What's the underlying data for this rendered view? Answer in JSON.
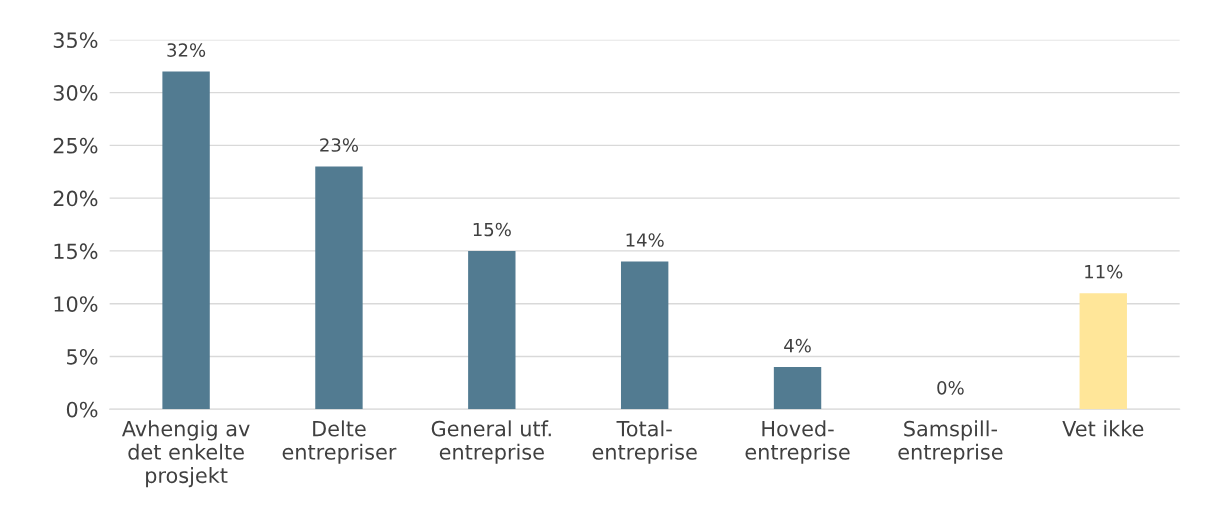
{
  "chart_data": {
    "type": "bar",
    "categories": [
      "Avhengig av\ndet enkelte\nprosjekt",
      "Delte\nentrepriser",
      "General utf.\nentreprise",
      "Total-\nentreprise",
      "Hoved-\nentreprise",
      "Samspill-\nentreprise",
      "Vet ikke"
    ],
    "values": [
      32,
      23,
      15,
      14,
      4,
      0,
      11
    ],
    "colors": [
      "#527b91",
      "#527b91",
      "#527b91",
      "#527b91",
      "#527b91",
      "#527b91",
      "#ffe699"
    ],
    "value_labels": [
      "32%",
      "23%",
      "15%",
      "14%",
      "4%",
      "0%",
      "11%"
    ],
    "ylim": [
      0,
      35
    ],
    "yticks": [
      {
        "value": 0,
        "label": "0%"
      },
      {
        "value": 5,
        "label": "5%"
      },
      {
        "value": 10,
        "label": "10%"
      },
      {
        "value": 15,
        "label": "15%"
      },
      {
        "value": 20,
        "label": "20%"
      },
      {
        "value": 25,
        "label": "25%"
      },
      {
        "value": 30,
        "label": "30%"
      },
      {
        "value": 35,
        "label": "35%"
      }
    ],
    "grid": "y"
  }
}
